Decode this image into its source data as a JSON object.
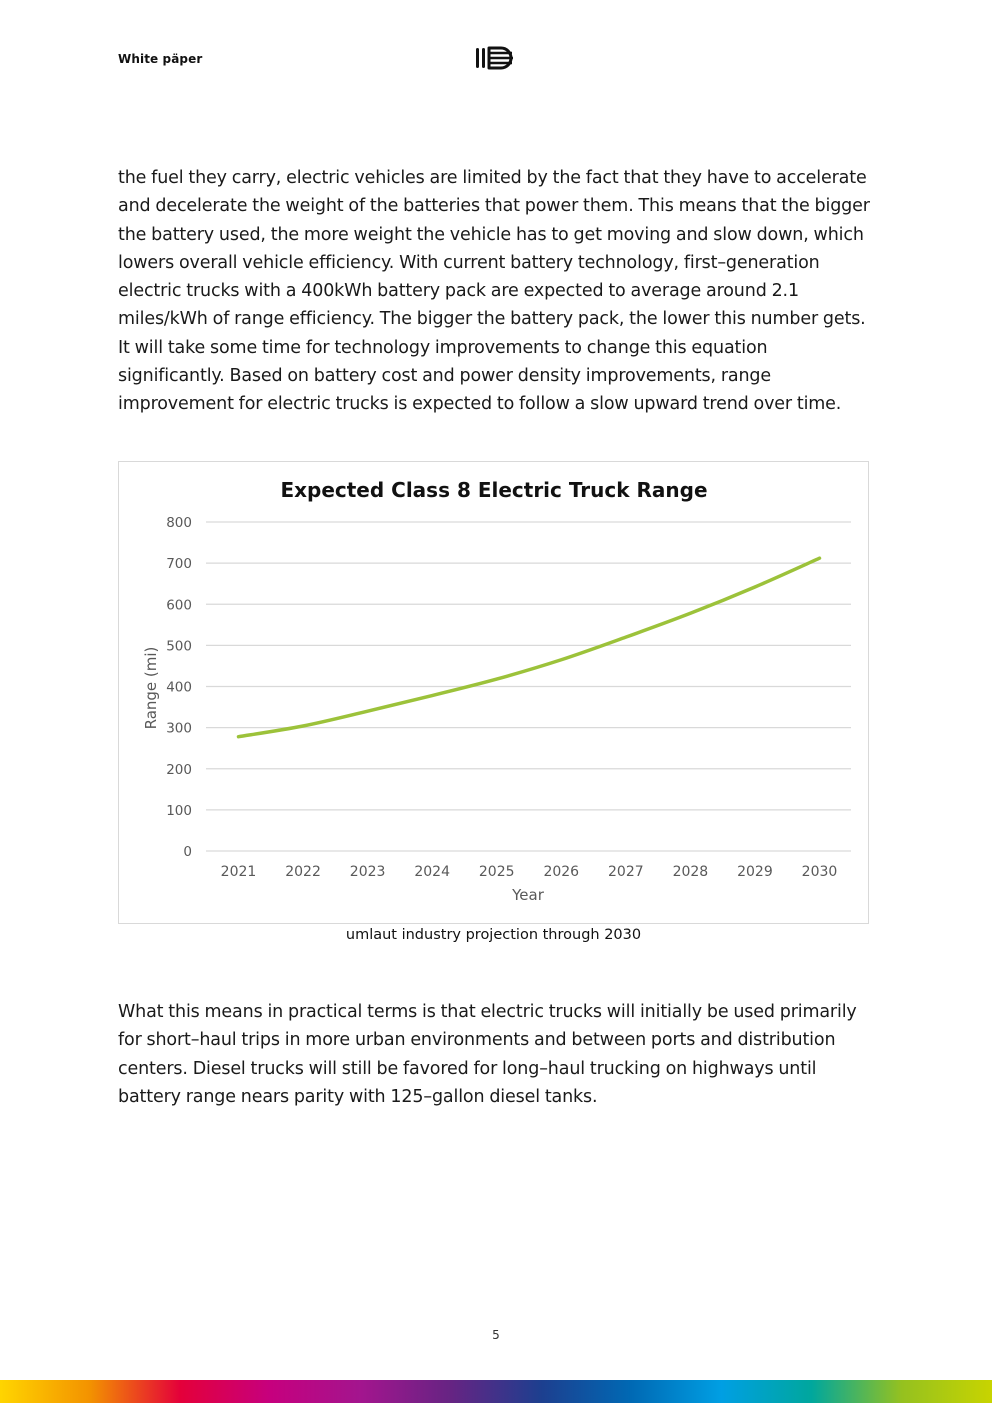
{
  "header": {
    "label": "White päper",
    "logo_icon": "umlaut-logo-icon"
  },
  "body": {
    "paragraph_1": "the fuel they carry, electric vehicles are limited by the fact that they have to accelerate and decelerate the weight of the batteries that power them.  This means that the bigger the battery used, the more weight the vehicle has to get moving and slow down, which lowers overall vehicle efficiency.  With current battery technology, first–generation electric trucks with a 400kWh battery pack are expected to average around 2.1 miles/kWh of range efficiency.  The bigger the battery pack, the lower this number gets.  It will take some time for technology improvements to change this equation significantly.  Based on battery cost and power density improvements, range improvement for electric trucks is expected to follow a slow upward trend over time.",
    "paragraph_2": "What this means in practical terms is that electric trucks will initially be used primarily for short–haul trips in more urban environments and between ports and distribution centers. Diesel trucks will still be favored for long–haul trucking on highways until battery range nears parity with 125–gallon diesel tanks.",
    "caption": "umlaut industry projection through 2030"
  },
  "chart_data": {
    "type": "line",
    "title": "Expected Class 8 Electric Truck Range",
    "xlabel": "Year",
    "ylabel": "Range (mi)",
    "categories": [
      "2021",
      "2022",
      "2023",
      "2024",
      "2025",
      "2026",
      "2027",
      "2028",
      "2029",
      "2030"
    ],
    "series": [
      {
        "values": [
          278,
          304,
          340,
          378,
          418,
          465,
          520,
          578,
          642,
          712
        ],
        "color": "#9cc23a"
      }
    ],
    "ylim": [
      0,
      800
    ],
    "yticks": [
      0,
      100,
      200,
      300,
      400,
      500,
      600,
      700,
      800
    ],
    "grid": true,
    "legend": "none"
  },
  "footer": {
    "page_number": "5",
    "gradient_colors": [
      "#ffd500",
      "#f39200",
      "#e4003a",
      "#c6007e",
      "#a3158e",
      "#662483",
      "#1d3f8f",
      "#0069b4",
      "#009fe3",
      "#00a79d",
      "#95c11f",
      "#c8d400"
    ]
  }
}
